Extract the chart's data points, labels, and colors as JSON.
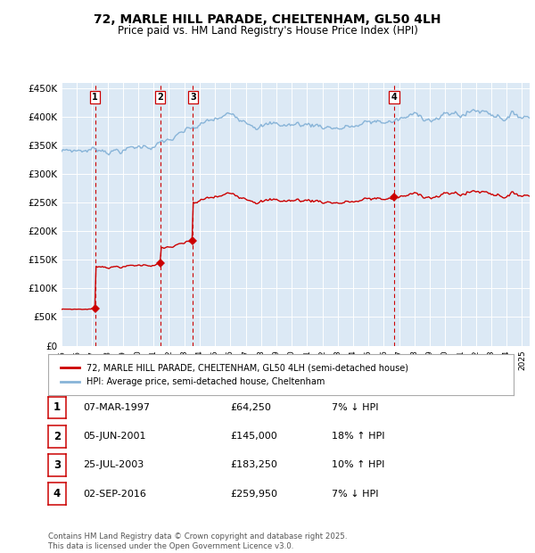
{
  "title": "72, MARLE HILL PARADE, CHELTENHAM, GL50 4LH",
  "subtitle": "Price paid vs. HM Land Registry's House Price Index (HPI)",
  "title_fontsize": 10,
  "subtitle_fontsize": 8.5,
  "plot_bg_color": "#dce9f5",
  "fig_bg_color": "#ffffff",
  "sale_dates_num": [
    1997.18,
    2001.43,
    2003.56,
    2016.67
  ],
  "sale_prices": [
    64250,
    145000,
    183250,
    259950
  ],
  "sale_labels": [
    "1",
    "2",
    "3",
    "4"
  ],
  "vline_color": "#cc0000",
  "sale_marker_color": "#cc0000",
  "red_line_color": "#cc0000",
  "blue_line_color": "#88b4d8",
  "ylim": [
    0,
    460000
  ],
  "yticks": [
    0,
    50000,
    100000,
    150000,
    200000,
    250000,
    300000,
    350000,
    400000,
    450000
  ],
  "xlim_start": 1995.0,
  "xlim_end": 2025.5,
  "xticks": [
    1995,
    1996,
    1997,
    1998,
    1999,
    2000,
    2001,
    2002,
    2003,
    2004,
    2005,
    2006,
    2007,
    2008,
    2009,
    2010,
    2011,
    2012,
    2013,
    2014,
    2015,
    2016,
    2017,
    2018,
    2019,
    2020,
    2021,
    2022,
    2023,
    2024,
    2025
  ],
  "legend_red_label": "72, MARLE HILL PARADE, CHELTENHAM, GL50 4LH (semi-detached house)",
  "legend_blue_label": "HPI: Average price, semi-detached house, Cheltenham",
  "table_entries": [
    {
      "num": "1",
      "date": "07-MAR-1997",
      "price": "£64,250",
      "hpi": "7% ↓ HPI"
    },
    {
      "num": "2",
      "date": "05-JUN-2001",
      "price": "£145,000",
      "hpi": "18% ↑ HPI"
    },
    {
      "num": "3",
      "date": "25-JUL-2003",
      "price": "£183,250",
      "hpi": "10% ↑ HPI"
    },
    {
      "num": "4",
      "date": "02-SEP-2016",
      "price": "£259,950",
      "hpi": "7% ↓ HPI"
    }
  ],
  "footnote": "Contains HM Land Registry data © Crown copyright and database right 2025.\nThis data is licensed under the Open Government Licence v3.0."
}
